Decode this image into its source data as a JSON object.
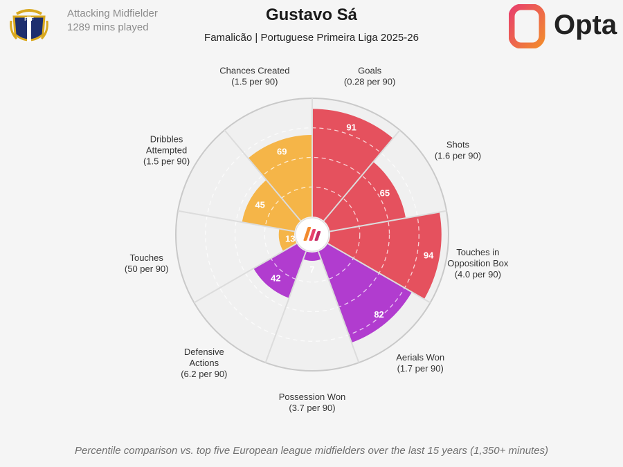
{
  "header": {
    "player_name": "Gustavo Sá",
    "position": "Attacking Midfielder",
    "minutes": "1289 mins played",
    "club_league_season": "Famalicão | Portuguese Primeira Liga 2025-26",
    "club_badge_text": "FCF",
    "brand_name": "Opta"
  },
  "footnote": "Percentile comparison vs. top five European league midfielders over the last 15 years (1,350+ minutes)",
  "colors": {
    "attacking": "#e5515e",
    "possession": "#b13ccf",
    "creation": "#f5b548",
    "grid": "#d4d4d4",
    "background": "#f5f5f5"
  },
  "chart_data": {
    "type": "polar-bar",
    "scale": [
      0,
      100
    ],
    "categories": [
      {
        "name": "Goals",
        "rate": "(0.28 per 90)",
        "percentile": 91,
        "group": "attacking"
      },
      {
        "name": "Shots",
        "rate": "(1.6 per 90)",
        "percentile": 65,
        "group": "attacking"
      },
      {
        "name": "Touches in Opposition Box",
        "rate": "(4.0 per 90)",
        "percentile": 94,
        "group": "attacking"
      },
      {
        "name": "Aerials Won",
        "rate": "(1.7 per 90)",
        "percentile": 82,
        "group": "possession"
      },
      {
        "name": "Possession Won",
        "rate": "(3.7 per 90)",
        "percentile": 7,
        "group": "possession"
      },
      {
        "name": "Defensive Actions",
        "rate": "(6.2 per 90)",
        "percentile": 42,
        "group": "possession"
      },
      {
        "name": "Touches",
        "rate": "(50 per 90)",
        "percentile": 13,
        "group": "creation"
      },
      {
        "name": "Dribbles Attempted",
        "rate": "(1.5 per 90)",
        "percentile": 45,
        "group": "creation"
      },
      {
        "name": "Chances Created",
        "rate": "(1.5 per 90)",
        "percentile": 69,
        "group": "creation"
      }
    ],
    "label_lines": [
      [
        "Goals",
        "(0.28 per 90)"
      ],
      [
        "Shots",
        "(1.6 per 90)"
      ],
      [
        "Touches in",
        "Opposition Box",
        "(4.0 per 90)"
      ],
      [
        "Aerials Won",
        "(1.7 per 90)"
      ],
      [
        "Possession Won",
        "(3.7 per 90)"
      ],
      [
        "Defensive",
        "Actions",
        "(6.2 per 90)"
      ],
      [
        "Touches",
        "(50 per 90)"
      ],
      [
        "Dribbles",
        "Attempted",
        "(1.5 per 90)"
      ],
      [
        "Chances Created",
        "(1.5 per 90)"
      ]
    ]
  }
}
